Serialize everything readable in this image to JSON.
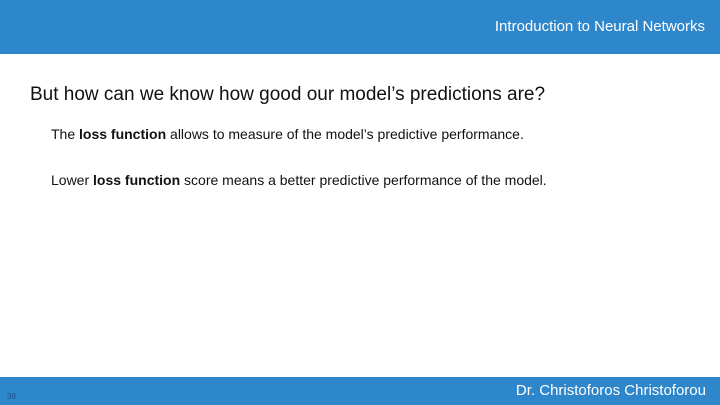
{
  "header": {
    "title": "Introduction to Neural Networks",
    "bar_color": "#2e86cb"
  },
  "slide": {
    "heading": "But how can we know how good our model’s predictions are?",
    "bullets": [
      {
        "before": "The ",
        "bold": "loss function",
        "after": " allows to measure of the model’s predictive performance."
      },
      {
        "before": "Lower ",
        "bold": "loss function",
        "after": " score means a better predictive performance of the model."
      }
    ]
  },
  "footer": {
    "author": "Dr. Christoforos Christoforou",
    "slide_number": "36",
    "bar_color": "#2e86cb"
  }
}
